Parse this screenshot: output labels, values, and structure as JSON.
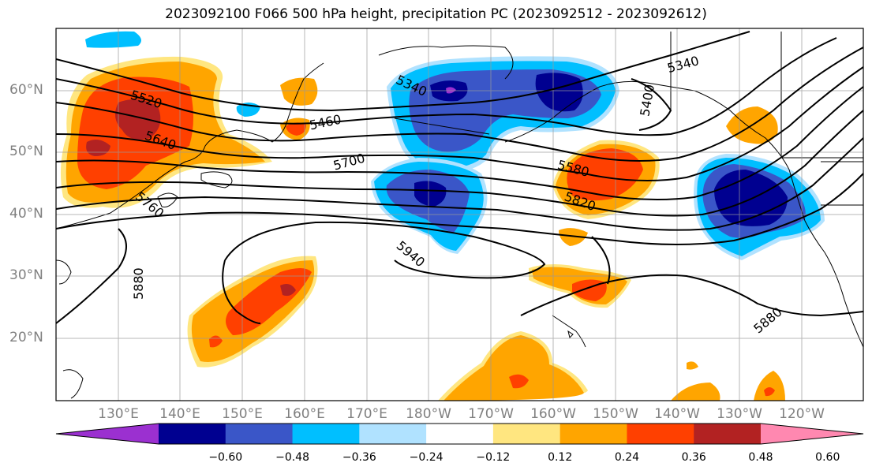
{
  "title": "2023092100 F066 500 hPa height, precipitation PC (2023092512 - 2023092612)",
  "map": {
    "lat_ticks": [
      {
        "label": "60°N",
        "lat": 60
      },
      {
        "label": "50°N",
        "lat": 50
      },
      {
        "label": "40°N",
        "lat": 40
      },
      {
        "label": "30°N",
        "lat": 30
      },
      {
        "label": "20°N",
        "lat": 20
      }
    ],
    "lon_ticks": [
      {
        "label": "130°E",
        "lon": 130
      },
      {
        "label": "140°E",
        "lon": 140
      },
      {
        "label": "150°E",
        "lon": 150
      },
      {
        "label": "160°E",
        "lon": 160
      },
      {
        "label": "170°E",
        "lon": 170
      },
      {
        "label": "180°W",
        "lon": 180
      },
      {
        "label": "170°W",
        "lon": 190
      },
      {
        "label": "160°W",
        "lon": 200
      },
      {
        "label": "150°W",
        "lon": 210
      },
      {
        "label": "140°W",
        "lon": 220
      },
      {
        "label": "130°W",
        "lon": 230
      },
      {
        "label": "120°W",
        "lon": 240
      }
    ],
    "contour_labels": [
      "5520",
      "5640",
      "5760",
      "5880",
      "5460",
      "5340",
      "5700",
      "5940",
      "5580",
      "5820",
      "5400",
      "5340",
      "5880"
    ]
  },
  "colorbar": {
    "colors": [
      "#9b30d0",
      "#000090",
      "#3a56c8",
      "#00bfff",
      "#b0e2ff",
      "#ffffff",
      "#ffe680",
      "#ffa500",
      "#ff4000",
      "#b22222",
      "#ff88b0"
    ],
    "tick_labels": [
      "−0.60",
      "−0.48",
      "−0.36",
      "−0.24",
      "−0.12",
      "0.12",
      "0.24",
      "0.36",
      "0.48",
      "0.60"
    ]
  }
}
